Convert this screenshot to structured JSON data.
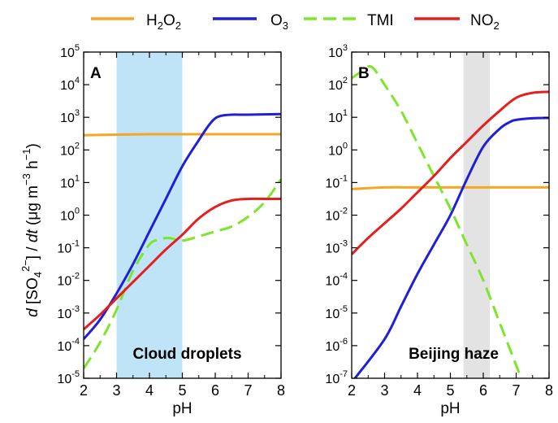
{
  "legend": {
    "items": [
      {
        "key": "h2o2",
        "base": "H",
        "sub1": "2",
        "mid": "O",
        "sub2": "2",
        "color": "#f5a623",
        "dash": "solid"
      },
      {
        "key": "o3",
        "base": "O",
        "sub1": "3",
        "mid": "",
        "sub2": "",
        "color": "#1f1fd8",
        "dash": "solid"
      },
      {
        "key": "tmi",
        "base": "TMI",
        "sub1": "",
        "mid": "",
        "sub2": "",
        "color": "#7ee62a",
        "dash": "dashed"
      },
      {
        "key": "no2",
        "base": "NO",
        "sub1": "2",
        "mid": "",
        "sub2": "",
        "color": "#e61e1e",
        "dash": "solid"
      }
    ]
  },
  "y_axis_label": {
    "d1": "d",
    "p1": " [SO",
    "sub": "4",
    "sup": "2−",
    "p2": "] / ",
    "d2": "dt",
    "units_open": "  (μg m",
    "sup2": "−3",
    "units_h": " h",
    "sup3": "−1",
    "units_close": ")"
  },
  "chart_data": [
    {
      "type": "line",
      "panel_letter": "A",
      "annotation": "Cloud droplets",
      "xlabel": "pH",
      "xlim": [
        2,
        8
      ],
      "xticks": [
        "2",
        "3",
        "4",
        "5",
        "6",
        "7",
        "8"
      ],
      "ylim_log10": [
        -5,
        5
      ],
      "yscale": "log",
      "ytick_exponents": [
        "-5",
        "-4",
        "-3",
        "-2",
        "-1",
        "0",
        "1",
        "2",
        "3",
        "4",
        "5"
      ],
      "ytick_base": "10",
      "shaded_band": {
        "x": [
          3,
          5
        ],
        "color": "#bfe4f7"
      },
      "series": [
        {
          "key": "h2o2",
          "color": "#f5a623",
          "dash": "solid",
          "x": [
            2,
            3,
            4,
            5,
            6,
            7,
            8
          ],
          "log10_y": [
            2.45,
            2.47,
            2.48,
            2.48,
            2.48,
            2.48,
            2.48
          ]
        },
        {
          "key": "o3",
          "color": "#1f1fd8",
          "dash": "solid",
          "x": [
            2,
            2.5,
            3,
            3.5,
            4,
            4.5,
            5,
            5.5,
            5.8,
            6,
            6.2,
            6.5,
            7,
            8
          ],
          "log10_y": [
            -3.8,
            -3.2,
            -2.4,
            -1.5,
            -0.5,
            0.5,
            1.5,
            2.3,
            2.75,
            2.97,
            3.05,
            3.08,
            3.08,
            3.1
          ]
        },
        {
          "key": "tmi",
          "color": "#7ee62a",
          "dash": "dashed",
          "x": [
            2,
            2.5,
            3,
            3.5,
            4,
            4.3,
            4.6,
            5,
            5.5,
            6,
            6.5,
            7,
            7.5,
            8
          ],
          "log10_y": [
            -4.7,
            -3.9,
            -2.9,
            -1.7,
            -0.9,
            -0.75,
            -0.7,
            -0.78,
            -0.65,
            -0.5,
            -0.35,
            -0.05,
            0.4,
            1.1
          ]
        },
        {
          "key": "no2",
          "color": "#e61e1e",
          "dash": "solid",
          "x": [
            2,
            2.5,
            3,
            3.5,
            4,
            4.5,
            5,
            5.5,
            6,
            6.5,
            7,
            7.5,
            8
          ],
          "log10_y": [
            -3.5,
            -3.05,
            -2.55,
            -2.05,
            -1.55,
            -1.05,
            -0.6,
            -0.1,
            0.25,
            0.45,
            0.5,
            0.5,
            0.5
          ]
        }
      ]
    },
    {
      "type": "line",
      "panel_letter": "B",
      "annotation": "Beijing haze",
      "xlabel": "pH",
      "xlim": [
        2,
        8
      ],
      "xticks": [
        "2",
        "3",
        "4",
        "5",
        "6",
        "7",
        "8"
      ],
      "ylim_log10": [
        -7,
        3
      ],
      "yscale": "log",
      "ytick_exponents": [
        "-7",
        "-6",
        "-5",
        "-4",
        "-3",
        "-2",
        "-1",
        "0",
        "1",
        "2",
        "3"
      ],
      "ytick_base": "10",
      "shaded_band": {
        "x": [
          5.4,
          6.2
        ],
        "color": "#e3e3e3"
      },
      "series": [
        {
          "key": "h2o2",
          "color": "#f5a623",
          "dash": "solid",
          "x": [
            2,
            3,
            4,
            5,
            6,
            7,
            8
          ],
          "log10_y": [
            -1.2,
            -1.15,
            -1.15,
            -1.15,
            -1.15,
            -1.15,
            -1.15
          ]
        },
        {
          "key": "o3",
          "color": "#1f1fd8",
          "dash": "solid",
          "x": [
            2.1,
            3,
            3.5,
            4,
            4.5,
            5,
            5.5,
            6,
            6.5,
            6.8,
            7,
            7.5,
            8
          ],
          "log10_y": [
            -7,
            -5.8,
            -4.8,
            -3.8,
            -2.9,
            -2.0,
            -0.9,
            0.1,
            0.65,
            0.85,
            0.92,
            0.97,
            0.98
          ]
        },
        {
          "key": "tmi",
          "color": "#7ee62a",
          "dash": "dashed",
          "x": [
            2,
            2.3,
            2.6,
            3,
            3.5,
            4,
            4.5,
            5,
            5.5,
            6,
            6.5,
            7,
            7.15
          ],
          "log10_y": [
            2.2,
            2.4,
            2.55,
            2.0,
            1.2,
            0.2,
            -0.8,
            -1.8,
            -2.9,
            -4.0,
            -5.3,
            -6.6,
            -7
          ]
        },
        {
          "key": "no2",
          "color": "#e61e1e",
          "dash": "solid",
          "x": [
            2,
            2.5,
            3,
            3.5,
            4,
            4.5,
            5,
            5.5,
            6,
            6.5,
            7,
            7.5,
            8
          ],
          "log10_y": [
            -3.2,
            -2.7,
            -2.25,
            -1.8,
            -1.3,
            -0.8,
            -0.25,
            0.25,
            0.75,
            1.2,
            1.6,
            1.75,
            1.78
          ]
        }
      ]
    }
  ]
}
